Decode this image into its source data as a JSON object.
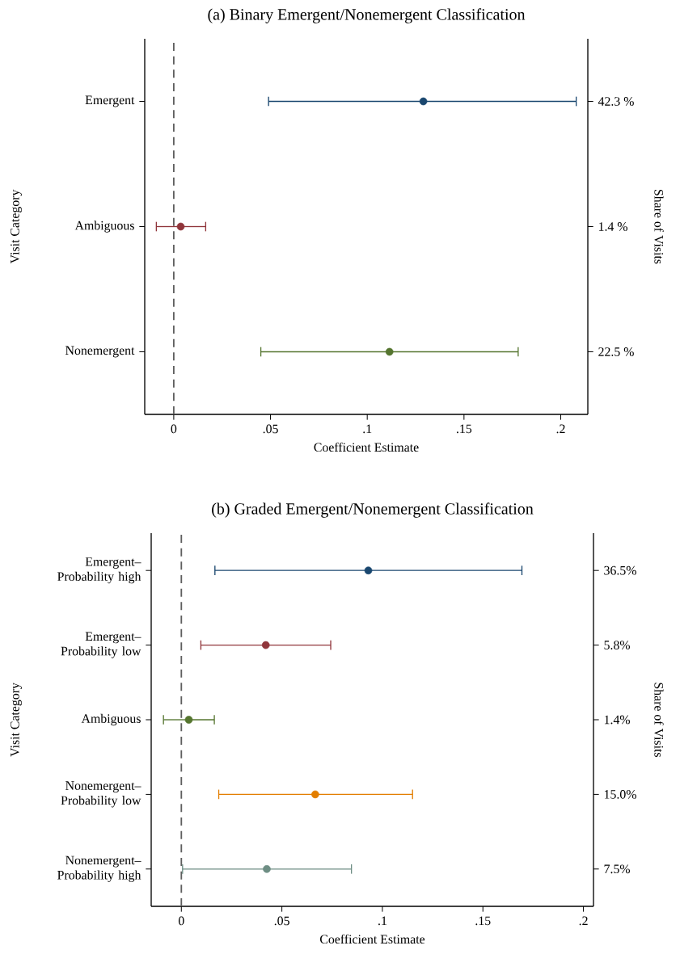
{
  "chart_data": [
    {
      "type": "scatter",
      "orientation": "horizontal",
      "marker": "circle",
      "title": "(a) Binary Emergent/Nonemergent Classification",
      "xlabel": "Coefficient Estimate",
      "ylabel": "Visit Category",
      "y2label": "Share of Visits",
      "categories": [
        "Emergent",
        "Ambiguous",
        "Nonemergent"
      ],
      "y2_categories": [
        "42.3 %",
        "1.4 %",
        "22.5 %"
      ],
      "values": [
        0.129,
        0.0036,
        0.1115
      ],
      "errors": [
        [
          0.049,
          0.208
        ],
        [
          -0.009,
          0.0165
        ],
        [
          0.045,
          0.178
        ]
      ],
      "colors": [
        "#1a476f",
        "#90353b",
        "#55752f"
      ],
      "xlim": [
        -0.015,
        0.214
      ],
      "xticks": [
        0,
        {
          "value": 0.05,
          "label": ".05"
        },
        {
          "value": 0.1,
          "label": ".1"
        },
        {
          "value": 0.15,
          "label": ".15"
        },
        {
          "value": 0.2,
          "label": ".2"
        }
      ],
      "ref_lines": [
        {
          "axis": "x",
          "value": 0,
          "line_style": "dashed",
          "color": "#5f5f5f"
        }
      ]
    },
    {
      "type": "scatter",
      "orientation": "horizontal",
      "marker": "circle",
      "title": "(b) Graded Emergent/Nonemergent Classification",
      "xlabel": "Coefficient Estimate",
      "ylabel": "Visit Category",
      "y2label": "Share of Visits",
      "categories": [
        "Emergent–Probability high",
        "Emergent–Probability low",
        "Ambiguous",
        "Nonemergent–Probability low",
        "Nonemergent–Probability high"
      ],
      "y2_categories": [
        "36.5%",
        "5.8%",
        "1.4%",
        "15.0%",
        "7.5%"
      ],
      "values": [
        0.093,
        0.042,
        0.0037,
        0.0666,
        0.0425
      ],
      "errors": [
        [
          0.0167,
          0.1694
        ],
        [
          0.0097,
          0.0743
        ],
        [
          -0.0089,
          0.0164
        ],
        [
          0.0186,
          0.115
        ],
        [
          0.0006,
          0.0846
        ]
      ],
      "colors": [
        "#1a476f",
        "#90353b",
        "#55752f",
        "#e37e00",
        "#6e8e84"
      ],
      "xlim": [
        -0.015,
        0.205
      ],
      "xticks": [
        0,
        {
          "value": 0.05,
          "label": ".05"
        },
        {
          "value": 0.1,
          "label": ".1"
        },
        {
          "value": 0.15,
          "label": ".15"
        },
        {
          "value": 0.2,
          "label": ".2"
        }
      ],
      "ref_lines": [
        {
          "axis": "x",
          "value": 0,
          "line_style": "dashed",
          "color": "#5f5f5f"
        }
      ]
    }
  ]
}
